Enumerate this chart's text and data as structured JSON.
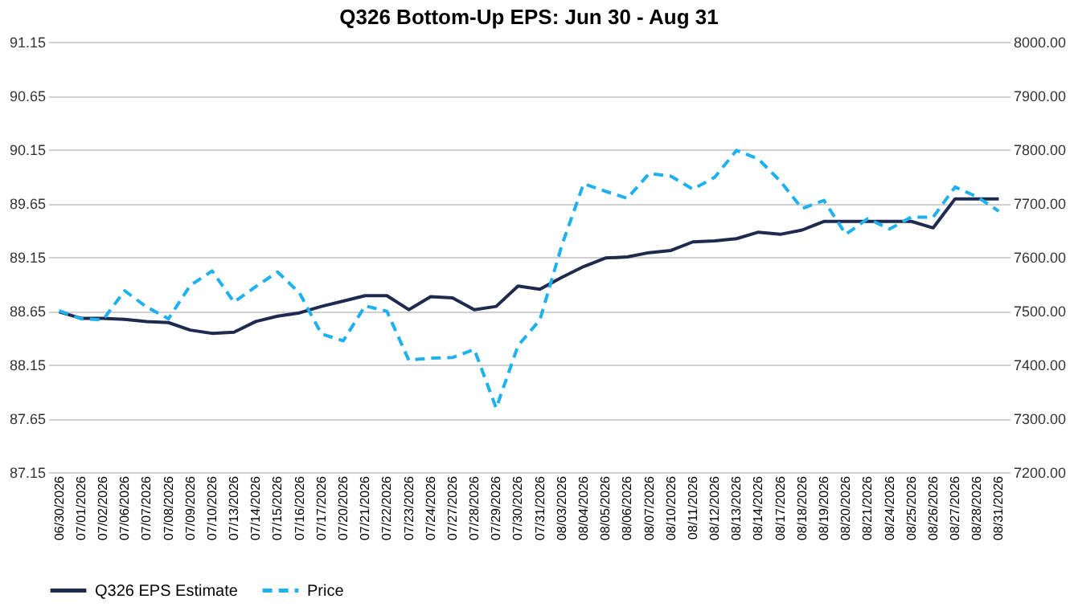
{
  "chart_data": {
    "type": "line",
    "title": "Q326 Bottom-Up EPS: Jun 30 - Aug 31",
    "categories": [
      "06/30/2026",
      "07/01/2026",
      "07/02/2026",
      "07/06/2026",
      "07/07/2026",
      "07/08/2026",
      "07/09/2026",
      "07/10/2026",
      "07/13/2026",
      "07/14/2026",
      "07/15/2026",
      "07/16/2026",
      "07/17/2026",
      "07/20/2026",
      "07/21/2026",
      "07/22/2026",
      "07/23/2026",
      "07/24/2026",
      "07/27/2026",
      "07/28/2026",
      "07/29/2026",
      "07/30/2026",
      "07/31/2026",
      "08/03/2026",
      "08/04/2026",
      "08/05/2026",
      "08/06/2026",
      "08/07/2026",
      "08/10/2026",
      "08/11/2026",
      "08/12/2026",
      "08/13/2026",
      "08/14/2026",
      "08/17/2026",
      "08/18/2026",
      "08/19/2026",
      "08/20/2026",
      "08/21/2026",
      "08/24/2026",
      "08/25/2026",
      "08/26/2026",
      "08/27/2026",
      "08/28/2026",
      "08/31/2026"
    ],
    "series": [
      {
        "name": "Q326 EPS Estimate",
        "color": "#1f2a4f",
        "line_style": "solid",
        "values": [
          88.64,
          88.58,
          88.58,
          88.57,
          88.55,
          88.54,
          88.47,
          88.44,
          88.45,
          88.55,
          88.6,
          88.63,
          88.69,
          88.74,
          88.79,
          88.79,
          88.66,
          88.78,
          88.77,
          88.66,
          88.69,
          88.88,
          88.85,
          88.96,
          89.06,
          89.14,
          89.15,
          89.19,
          89.21,
          89.29,
          89.3,
          89.32,
          89.38,
          89.36,
          89.4,
          89.48,
          89.48,
          89.48,
          89.48,
          89.48,
          89.42,
          89.69,
          89.69,
          89.69
        ]
      },
      {
        "name": "Price",
        "color": "#1fb0ee",
        "line_style": "dashed",
        "axis": "y2",
        "values": [
          7500,
          7485,
          7483,
          7537,
          7507,
          7485,
          7547,
          7574,
          7516,
          7545,
          7572,
          7533,
          7457,
          7444,
          7509,
          7499,
          7408,
          7412,
          7413,
          7428,
          7319,
          7435,
          7483,
          7621,
          7736,
          7722,
          7709,
          7755,
          7750,
          7726,
          7748,
          7798,
          7782,
          7741,
          7690,
          7705,
          7642,
          7671,
          7652,
          7674,
          7674,
          7730,
          7712,
          7685
        ]
      }
    ],
    "ylim": [
      87.15,
      91.15
    ],
    "yticks": [
      87.15,
      87.65,
      88.15,
      88.65,
      89.15,
      89.65,
      90.15,
      90.65,
      91.15
    ],
    "y2lim": [
      7200,
      8000
    ],
    "y2ticks": [
      {
        "value": 7200,
        "label": "7200.00"
      },
      {
        "value": 7300,
        "label": "7300.00"
      },
      {
        "value": 7400,
        "label": "7400.00"
      },
      {
        "value": 7500,
        "label": "7500.00"
      },
      {
        "value": 7600,
        "label": "7600.00"
      },
      {
        "value": 7700,
        "label": "7700.00"
      },
      {
        "value": 7800,
        "label": "7800.00"
      },
      {
        "value": 7900,
        "label": "7900.00"
      },
      {
        "value": 8000,
        "label": "8000.00"
      }
    ],
    "grid": "y",
    "legend": "bottom",
    "marker": "none"
  }
}
